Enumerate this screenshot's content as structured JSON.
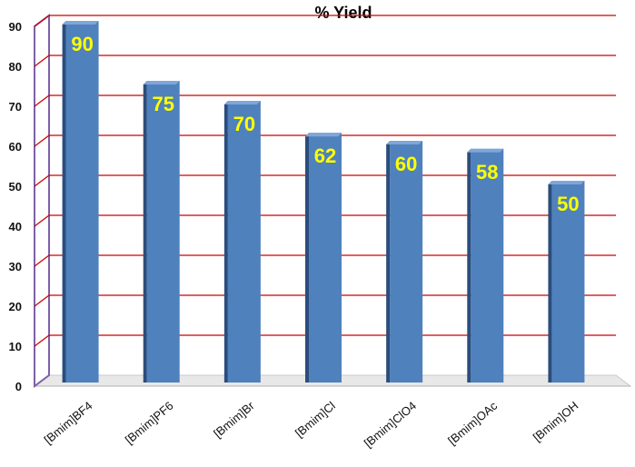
{
  "chart_data": {
    "type": "bar",
    "title": "% Yield",
    "xlabel": "",
    "ylabel": "",
    "categories": [
      "[Bmim]BF4",
      "[Bmim]PF6",
      "[Bmim]Br",
      "[Bmim]Cl",
      "[Bmim]ClO4",
      "[Bmim]OAc",
      "[Bmim]OH"
    ],
    "values": [
      90,
      75,
      70,
      62,
      60,
      58,
      50
    ],
    "data_labels": [
      "90",
      "75",
      "70",
      "62",
      "60",
      "58",
      "50"
    ],
    "ylim": [
      0,
      90
    ],
    "yticks": [
      0,
      10,
      20,
      30,
      40,
      50,
      60,
      70,
      80,
      90
    ],
    "ytick_labels": [
      "0",
      "10",
      "20",
      "30",
      "40",
      "50",
      "60",
      "70",
      "80",
      "90"
    ],
    "grid": true,
    "legend": "none",
    "colors": {
      "bar": "#4f81bd",
      "bar_dark": "#2b4d7c",
      "bar_light": "#7fa6d8",
      "grid": "#cc0000",
      "axis_wall": "#7f5fa8",
      "data_label": "#ffff00"
    }
  }
}
